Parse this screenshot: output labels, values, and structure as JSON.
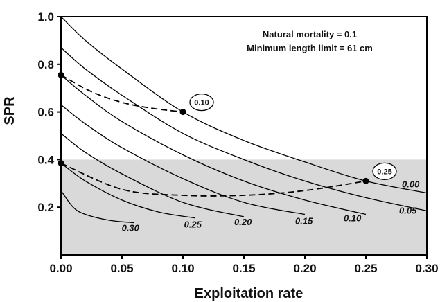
{
  "chart_data": {
    "type": "line",
    "xlabel": "Exploitation rate",
    "ylabel": "SPR",
    "xlim": [
      0,
      0.3
    ],
    "ylim": [
      0,
      1.0
    ],
    "x_ticks": [
      "0.00",
      "0.05",
      "0.10",
      "0.15",
      "0.20",
      "0.25",
      "0.30"
    ],
    "y_ticks": [
      "0.2",
      "0.4",
      "0.6",
      "0.8",
      "1.0"
    ],
    "annotations": [
      "Natural mortality = 0.1",
      "Minimum length limit = 61 cm"
    ],
    "shaded_region": {
      "y_from": 0,
      "y_to": 0.4,
      "color": "#d9d9d9"
    },
    "series": [
      {
        "name": "0.00",
        "x": [
          0,
          0.02,
          0.05,
          0.1,
          0.15,
          0.2,
          0.25,
          0.3
        ],
        "y": [
          1.0,
          0.9,
          0.78,
          0.6,
          0.48,
          0.39,
          0.31,
          0.26
        ]
      },
      {
        "name": "0.05",
        "x": [
          0,
          0.02,
          0.05,
          0.1,
          0.15,
          0.2,
          0.25,
          0.3
        ],
        "y": [
          0.87,
          0.78,
          0.67,
          0.51,
          0.4,
          0.31,
          0.24,
          0.185
        ]
      },
      {
        "name": "0.10",
        "x": [
          0,
          0.02,
          0.05,
          0.1,
          0.15,
          0.2,
          0.25
        ],
        "y": [
          0.755,
          0.67,
          0.56,
          0.42,
          0.31,
          0.23,
          0.17
        ]
      },
      {
        "name": "0.15",
        "x": [
          0,
          0.02,
          0.05,
          0.1,
          0.15,
          0.2
        ],
        "y": [
          0.63,
          0.55,
          0.45,
          0.32,
          0.22,
          0.17
        ]
      },
      {
        "name": "0.20",
        "x": [
          0,
          0.02,
          0.05,
          0.1,
          0.15
        ],
        "y": [
          0.51,
          0.43,
          0.34,
          0.22,
          0.16
        ]
      },
      {
        "name": "0.25",
        "x": [
          0,
          0.02,
          0.05,
          0.08,
          0.11
        ],
        "y": [
          0.385,
          0.31,
          0.23,
          0.18,
          0.155
        ]
      },
      {
        "name": "0.30",
        "x": [
          0,
          0.01,
          0.02,
          0.04,
          0.06
        ],
        "y": [
          0.27,
          0.2,
          0.17,
          0.145,
          0.135
        ]
      }
    ],
    "dashed_series": [
      {
        "label": "0.10",
        "x": [
          0,
          0.025,
          0.05,
          0.075,
          0.1
        ],
        "y": [
          0.755,
          0.685,
          0.64,
          0.615,
          0.6
        ]
      },
      {
        "label": "0.25",
        "x": [
          0,
          0.05,
          0.1,
          0.15,
          0.2,
          0.25
        ],
        "y": [
          0.385,
          0.275,
          0.25,
          0.25,
          0.27,
          0.31
        ]
      }
    ],
    "markers": [
      {
        "x": 0,
        "y": 0.755
      },
      {
        "x": 0.1,
        "y": 0.6
      },
      {
        "x": 0,
        "y": 0.385
      },
      {
        "x": 0.25,
        "y": 0.31
      }
    ]
  }
}
